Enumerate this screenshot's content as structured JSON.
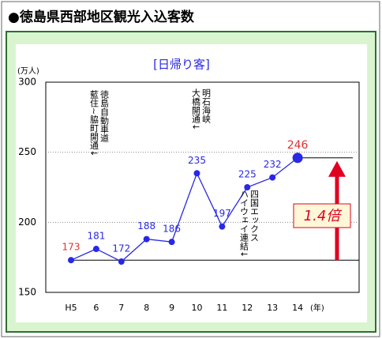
{
  "chart_data": {
    "type": "line",
    "title": "●徳島県西部地区観光入込客数",
    "subtitle": "[日帰り客]",
    "y_label": "(万人)",
    "x_label": "(年)",
    "categories": [
      "H5",
      "6",
      "7",
      "8",
      "9",
      "10",
      "11",
      "12",
      "13",
      "14"
    ],
    "series": [
      {
        "name": "日帰り客",
        "color": "#2828e6",
        "values": [
          173,
          181,
          172,
          188,
          186,
          235,
          197,
          225,
          232,
          246
        ]
      }
    ],
    "label_colors": [
      "#e03030",
      "#2828e6",
      "#2828e6",
      "#2828e6",
      "#2828e6",
      "#2828e6",
      "#2828e6",
      "#2828e6",
      "#2828e6",
      "#e03030"
    ],
    "ylim": [
      150,
      300
    ],
    "yticks": [
      150,
      200,
      250,
      300
    ],
    "grid": true,
    "annotations": [
      {
        "lines": [
          "徳島自動車道",
          "藍住~脇町開通↓"
        ]
      },
      {
        "lines": [
          "明石海峡",
          "大橋開通↓"
        ]
      },
      {
        "lines": [
          "四国エックス",
          "ハイウェイ連結↓"
        ]
      }
    ],
    "ratio_label": "1.4倍"
  }
}
